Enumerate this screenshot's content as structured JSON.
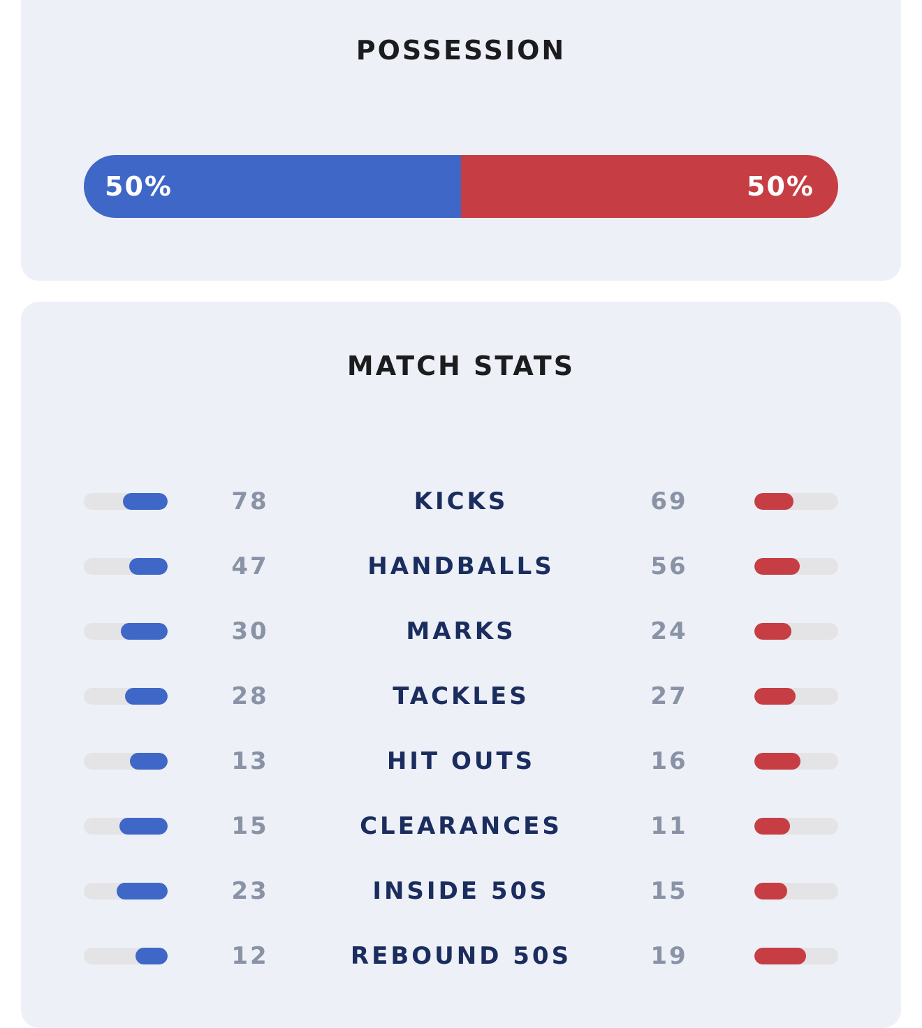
{
  "colors": {
    "home": "#3f67c7",
    "away": "#c63e43",
    "track": "#e4e4e6",
    "card": "#edf0f7"
  },
  "possession": {
    "title": "POSSESSION",
    "home_percent": 50,
    "away_percent": 50,
    "home_label": "50%",
    "away_label": "50%"
  },
  "match_stats": {
    "title": "MATCH STATS",
    "rows": [
      {
        "label": "KICKS",
        "home": "78",
        "away": "69"
      },
      {
        "label": "HANDBALLS",
        "home": "47",
        "away": "56"
      },
      {
        "label": "MARKS",
        "home": "30",
        "away": "24"
      },
      {
        "label": "TACKLES",
        "home": "28",
        "away": "27"
      },
      {
        "label": "HIT OUTS",
        "home": "13",
        "away": "16"
      },
      {
        "label": "CLEARANCES",
        "home": "15",
        "away": "11"
      },
      {
        "label": "INSIDE 50S",
        "home": "23",
        "away": "15"
      },
      {
        "label": "REBOUND 50S",
        "home": "12",
        "away": "19"
      }
    ]
  }
}
